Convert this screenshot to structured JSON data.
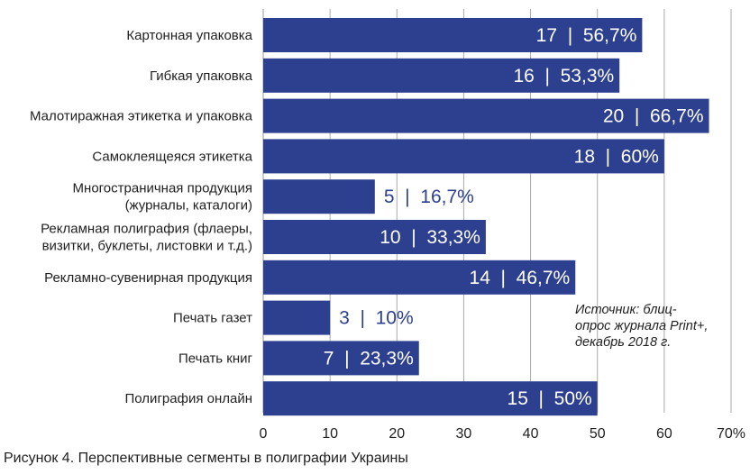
{
  "chart_data": {
    "type": "bar",
    "orientation": "horizontal",
    "categories": [
      [
        "Картонная упаковка"
      ],
      [
        "Гибкая упаковка"
      ],
      [
        "Малотиражная этикетка и упаковка"
      ],
      [
        "Самоклеящеяся этикетка"
      ],
      [
        "Многостраничная продукция",
        "(журналы, каталоги)"
      ],
      [
        "Рекламная полиграфия (флаеры,",
        "визитки, буклеты, листовки и т.д.)"
      ],
      [
        "Рекламно-сувенирная продукция"
      ],
      [
        "Печать газет"
      ],
      [
        "Печать книг"
      ],
      [
        "Полиграфия онлайн"
      ]
    ],
    "values": [
      56.7,
      53.3,
      66.7,
      60,
      16.7,
      33.3,
      46.7,
      10,
      23.3,
      50
    ],
    "data_labels": [
      "17  |  56,7%",
      "16  |  53,3%",
      "20  |  66,7%",
      "18  |  60%",
      "5  |  16,7%",
      "10  |  33,3%",
      "14  |  46,7%",
      "3  |  10%",
      "7  |  23,3%",
      "15  |  50%"
    ],
    "xlim": [
      0,
      70
    ],
    "x_ticks": [
      "0",
      "10",
      "20",
      "30",
      "40",
      "50",
      "60",
      "70%"
    ],
    "grid": true,
    "bar_color": "#2d3f8f",
    "label_color_inside": "#ffffff",
    "label_color_outside": "#2d3f8f",
    "grid_color": "#aaaaaa",
    "source_note": [
      "Источник: блиц-",
      "опрос журнала Print+,",
      "декабрь 2018 г."
    ],
    "caption": "Рисунок 4. Перспективные сегменты в полиграфии Украины"
  }
}
